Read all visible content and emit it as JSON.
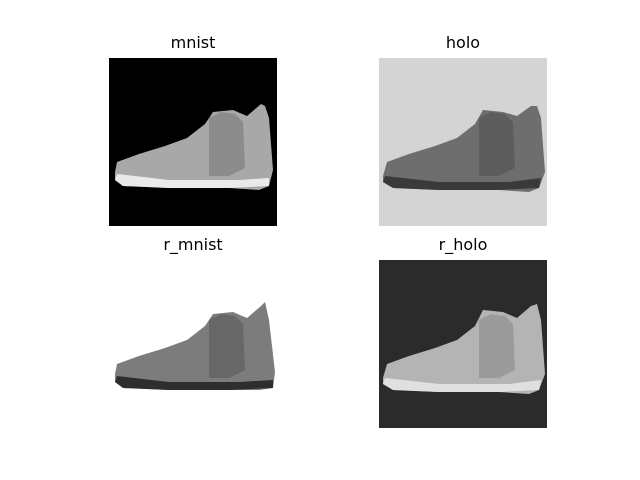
{
  "panels": [
    {
      "title": "mnist",
      "background": "#000000",
      "shoe_fill": "#a8a8a8",
      "shoe_shade": "#7a7a7a",
      "sole": "#eaeaea"
    },
    {
      "title": "holo",
      "background": "#d4d4d4",
      "shoe_fill": "#6e6e6e",
      "shoe_shade": "#525252",
      "sole": "#3a3a3a"
    },
    {
      "title": "r_mnist",
      "background": "#ffffff",
      "shoe_fill": "#7c7c7c",
      "shoe_shade": "#5a5a5a",
      "sole": "#2e2e2e"
    },
    {
      "title": "r_holo",
      "background": "#2b2b2b",
      "shoe_fill": "#b4b4b4",
      "shoe_shade": "#8a8a8a",
      "sole": "#e0e0e0"
    }
  ]
}
